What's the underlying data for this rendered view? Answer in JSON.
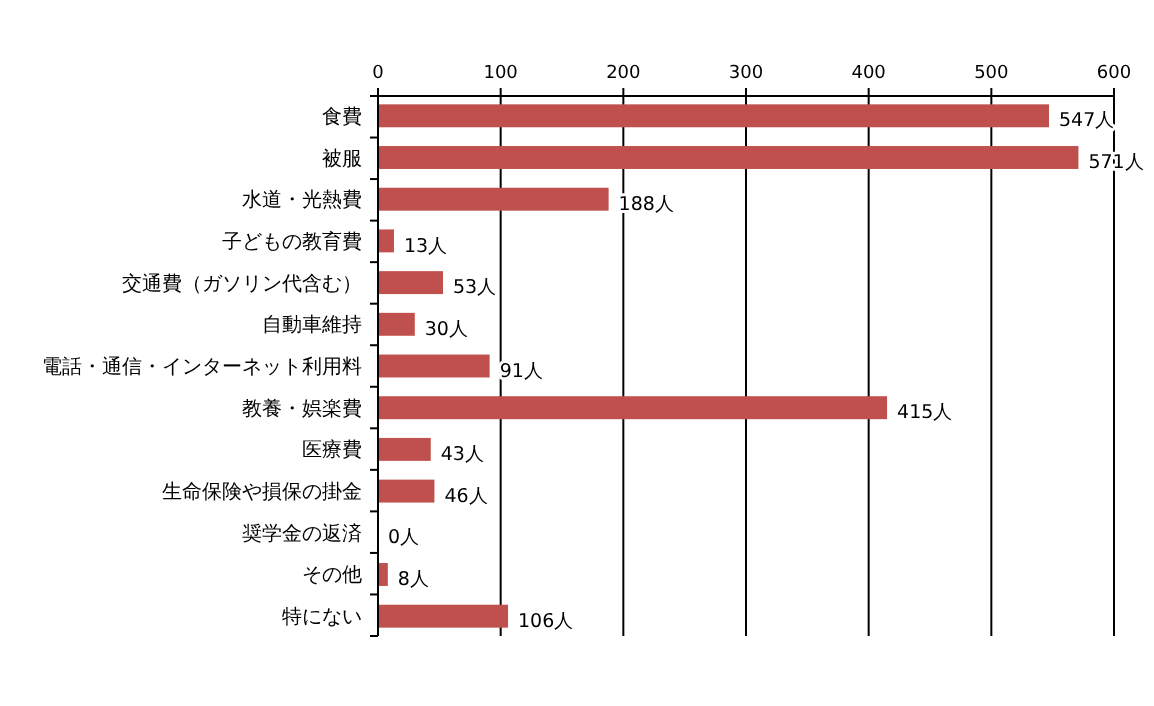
{
  "chart_data": {
    "type": "bar",
    "orientation": "horizontal",
    "categories": [
      "食費",
      "被服",
      "水道・光熱費",
      "子どもの教育費",
      "交通費（ガソリン代含む）",
      "自動車維持",
      "電話・通信・インターネット利用料",
      "教養・娯楽費",
      "医療費",
      "生命保険や損保の掛金",
      "奨学金の返済",
      "その他",
      "特にない"
    ],
    "values": [
      547,
      571,
      188,
      13,
      53,
      30,
      91,
      415,
      43,
      46,
      0,
      8,
      106
    ],
    "value_labels": [
      "547人",
      "571人",
      "188人",
      "13人",
      "53人",
      "30人",
      "91人",
      "415人",
      "43人",
      "46人",
      "0人",
      "8人",
      "106人"
    ],
    "color": "#c0504d",
    "xlim": [
      0,
      600
    ],
    "xticks": [
      0,
      100,
      200,
      300,
      400,
      500,
      600
    ],
    "grid": "x"
  }
}
